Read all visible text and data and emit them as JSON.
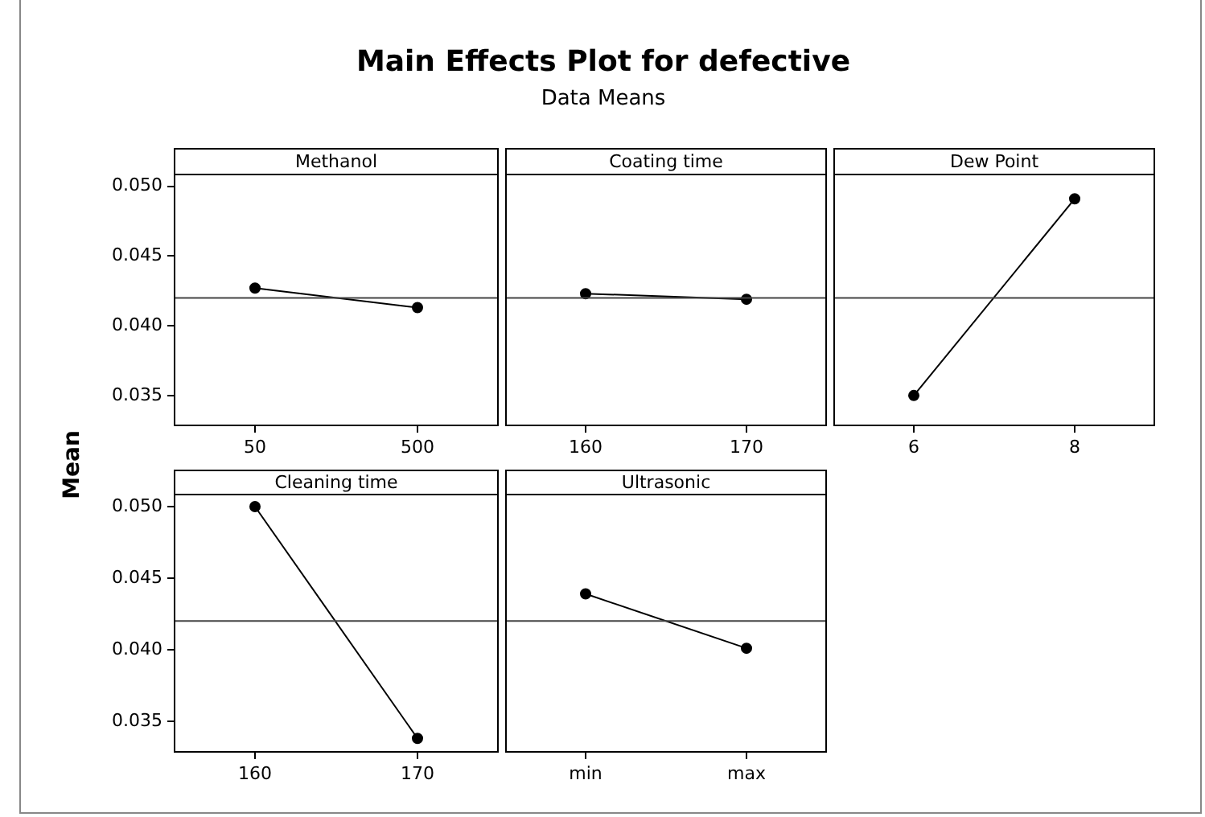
{
  "chart_data": [
    {
      "type": "line",
      "title": "Main Effects Plot for defective",
      "ylabel": "Mean",
      "xlabel": "Methanol",
      "categories": [
        "50",
        "500"
      ],
      "values": [
        0.0427,
        0.0413
      ],
      "color": "#000000",
      "marker": "circle",
      "ylim": [
        0.0328,
        0.0509
      ],
      "yticks": [
        {
          "value": 0.035,
          "label": "0.035"
        },
        {
          "value": 0.04,
          "label": "0.040"
        },
        {
          "value": 0.045,
          "label": "0.045"
        },
        {
          "value": 0.05,
          "label": "0.050"
        }
      ],
      "ref_lines": [
        {
          "axis": "y",
          "value": 0.042
        }
      ]
    },
    {
      "type": "line",
      "subtitle": "Data Means",
      "xlabel": "Coating time",
      "categories": [
        "160",
        "170"
      ],
      "values": [
        0.0423,
        0.0419
      ],
      "color": "#000000",
      "marker": "circle",
      "ylim": [
        0.0328,
        0.0509
      ],
      "ref_lines": [
        {
          "axis": "y",
          "value": 0.042
        }
      ],
      "tick_labels": "x"
    },
    {
      "type": "line",
      "xlabel": "Dew Point",
      "categories": [
        "6",
        "8"
      ],
      "values": [
        0.035,
        0.0491
      ],
      "color": "#000000",
      "marker": "circle",
      "ylim": [
        0.0328,
        0.0509
      ],
      "ref_lines": [
        {
          "axis": "y",
          "value": 0.042
        }
      ],
      "tick_labels": "x"
    },
    {
      "type": "line",
      "xlabel": "Cleaning time",
      "categories": [
        "160",
        "170"
      ],
      "values": [
        0.05,
        0.0338
      ],
      "color": "#000000",
      "marker": "circle",
      "ylim": [
        0.0328,
        0.0509
      ],
      "yticks": [
        {
          "value": 0.035,
          "label": "0.035"
        },
        {
          "value": 0.04,
          "label": "0.040"
        },
        {
          "value": 0.045,
          "label": "0.045"
        },
        {
          "value": 0.05,
          "label": "0.050"
        }
      ],
      "ref_lines": [
        {
          "axis": "y",
          "value": 0.042
        }
      ]
    },
    {
      "type": "line",
      "xlabel": "Ultrasonic",
      "categories": [
        "min",
        "max"
      ],
      "values": [
        0.0439,
        0.0401
      ],
      "color": "#000000",
      "marker": "circle",
      "ylim": [
        0.0328,
        0.0509
      ],
      "ref_lines": [
        {
          "axis": "y",
          "value": 0.042
        }
      ],
      "tick_labels": "x"
    }
  ]
}
